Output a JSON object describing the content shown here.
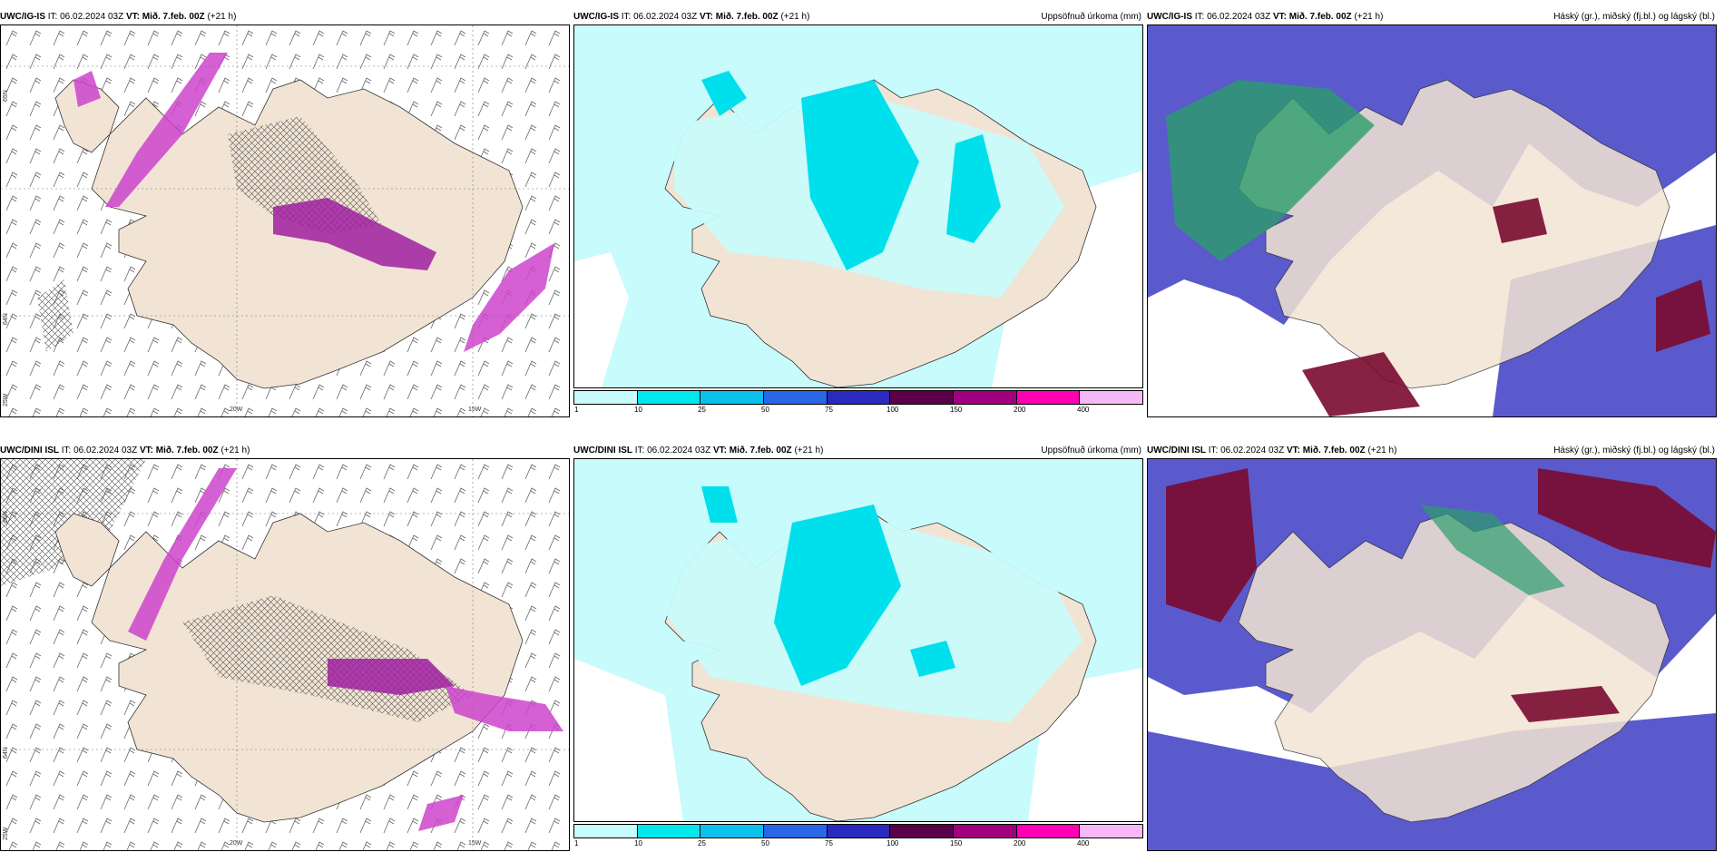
{
  "panels": [
    {
      "model": "UWC/IG-IS",
      "it": "IT: 06.02.2024 03Z",
      "vt_label": "VT:",
      "vt_value": "Mið. 7.feb. 00Z",
      "lead": "(+21 h)",
      "right": "",
      "type": "wind",
      "labels": {
        "lon20": "20W",
        "lon15": "15W",
        "lat65": "65N",
        "lat64": "64N",
        "lat63": "25W"
      }
    },
    {
      "model": "UWC/IG-IS",
      "it": "IT: 06.02.2024 03Z",
      "vt_label": "VT:",
      "vt_value": "Mið. 7.feb. 00Z",
      "lead": "(+21 h)",
      "right": "Uppsöfnuð úrkoma (mm)",
      "type": "precip"
    },
    {
      "model": "UWC/IG-IS",
      "it": "IT: 06.02.2024 03Z",
      "vt_label": "VT:",
      "vt_value": "Mið. 7.feb. 00Z",
      "lead": "(+21 h)",
      "right": "Háský (gr.), miðský (fj.bl.) og lágský (bl.)",
      "type": "cloud"
    },
    {
      "model": "UWC/DINI ISL",
      "it": "IT: 06.02.2024 03Z",
      "vt_label": "VT:",
      "vt_value": "Mið. 7.feb. 00Z",
      "lead": "(+21 h)",
      "right": "",
      "type": "wind",
      "labels": {
        "lon20": "20W",
        "lon15": "15W",
        "lat65": "66N",
        "lat64": "64N",
        "lat63": "25W"
      }
    },
    {
      "model": "UWC/DINI ISL",
      "it": "IT: 06.02.2024 03Z",
      "vt_label": "VT:",
      "vt_value": "Mið. 7.feb. 00Z",
      "lead": "(+21 h)",
      "right": "Uppsöfnuð úrkoma (mm)",
      "type": "precip"
    },
    {
      "model": "UWC/DINI ISL",
      "it": "IT: 06.02.2024 03Z",
      "vt_label": "VT:",
      "vt_value": "Mið. 7.feb. 00Z",
      "lead": "(+21 h)",
      "right": "Háský (gr.), miðský (fj.bl.) og lágský (bl.)",
      "type": "cloud"
    }
  ],
  "precip_colorbar": {
    "ticks": [
      "1",
      "10",
      "25",
      "50",
      "75",
      "100",
      "150",
      "200",
      "400"
    ],
    "colors": [
      "#c8fbfb",
      "#00e8ec",
      "#0cc0ec",
      "#2a66e8",
      "#2a2ac0",
      "#5a0048",
      "#a00080",
      "#ff00b4",
      "#f6b8f6"
    ]
  },
  "colors": {
    "land": "#f2e4d4",
    "sea": "#ffffff",
    "precip_light": "#c8fbfb",
    "precip_mid": "#00e0ec",
    "icing": "#cc44cc",
    "high_cloud": "#2c9c6c",
    "mid_cloud": "#7a0a30",
    "low_cloud": "#4848c8"
  }
}
